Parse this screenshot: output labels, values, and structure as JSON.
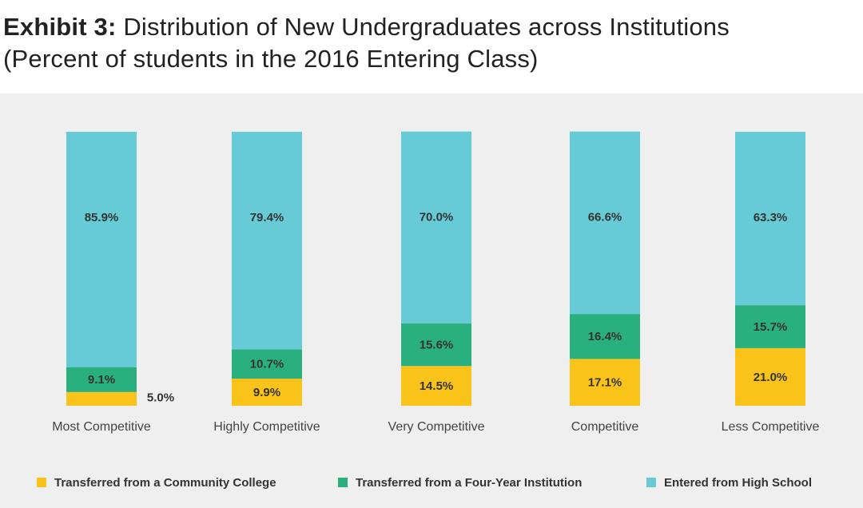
{
  "title": {
    "lead": "Exhibit 3:",
    "line1": " Distribution of New Undergraduates across Institutions",
    "line2": "(Percent of students in the 2016 Entering Class)"
  },
  "chart_data": {
    "type": "bar",
    "stacked": true,
    "categories": [
      "Most Competitive",
      "Highly Competitive",
      "Very Competitive",
      "Competitive",
      "Less Competitive"
    ],
    "series": [
      {
        "name": "Transferred from a Community College",
        "color": "#f9c31a",
        "values": [
          5.0,
          9.9,
          14.5,
          17.1,
          21.0
        ],
        "labels": [
          "5.0%",
          "9.9%",
          "14.5%",
          "17.1%",
          "21.0%"
        ]
      },
      {
        "name": "Transferred from a Four-Year Institution",
        "color": "#2ab07f",
        "values": [
          9.1,
          10.7,
          15.6,
          16.4,
          15.7
        ],
        "labels": [
          "9.1%",
          "10.7%",
          "15.6%",
          "16.4%",
          "15.7%"
        ]
      },
      {
        "name": "Entered from High School",
        "color": "#66cbd6",
        "values": [
          85.9,
          79.4,
          70.0,
          66.6,
          63.3
        ],
        "labels": [
          "85.9%",
          "79.4%",
          "70.0%",
          "66.6%",
          "63.3%"
        ]
      }
    ],
    "ylim": [
      0,
      100
    ],
    "grid": false,
    "legend_position": "bottom"
  }
}
